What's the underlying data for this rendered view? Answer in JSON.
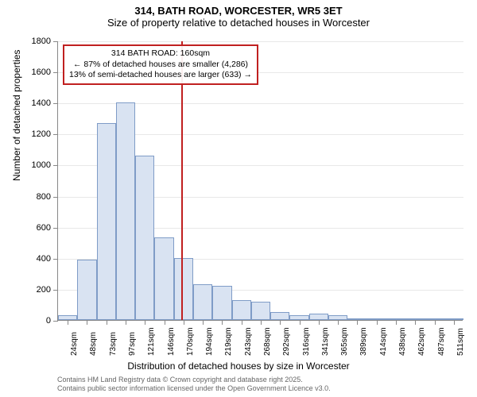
{
  "title": "314, BATH ROAD, WORCESTER, WR5 3ET",
  "subtitle": "Size of property relative to detached houses in Worcester",
  "chart": {
    "type": "histogram",
    "categories": [
      "24sqm",
      "48sqm",
      "73sqm",
      "97sqm",
      "121sqm",
      "146sqm",
      "170sqm",
      "194sqm",
      "219sqm",
      "243sqm",
      "268sqm",
      "292sqm",
      "316sqm",
      "341sqm",
      "365sqm",
      "389sqm",
      "414sqm",
      "438sqm",
      "462sqm",
      "487sqm",
      "511sqm"
    ],
    "values": [
      30,
      390,
      1270,
      1400,
      1060,
      530,
      400,
      230,
      220,
      130,
      120,
      50,
      30,
      40,
      30,
      8,
      8,
      4,
      4,
      4,
      2
    ],
    "ylim": [
      0,
      1800
    ],
    "ytick_step": 200,
    "bar_fill": "#d9e3f2",
    "bar_border": "#7f9cc7",
    "grid_color": "#e8e8e8",
    "axis_color": "#888888",
    "background_color": "#ffffff",
    "marker_value_sqm": 160,
    "marker_color": "#c02020",
    "y_axis_title": "Number of detached properties",
    "x_axis_title": "Distribution of detached houses by size in Worcester",
    "label_fontsize": 11,
    "title_fontsize": 13
  },
  "annotation": {
    "line1": "314 BATH ROAD: 160sqm",
    "line2": "← 87% of detached houses are smaller (4,286)",
    "line3": "13% of semi-detached houses are larger (633) →"
  },
  "footnote": {
    "line1": "Contains HM Land Registry data © Crown copyright and database right 2025.",
    "line2": "Contains public sector information licensed under the Open Government Licence v3.0."
  }
}
